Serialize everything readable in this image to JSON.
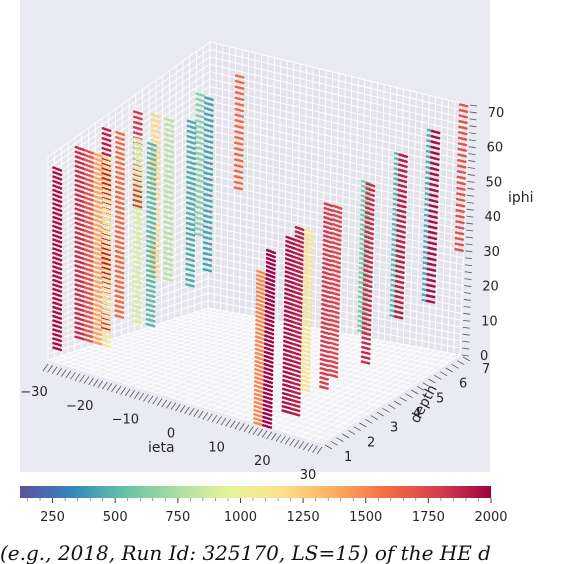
{
  "chart_data": {
    "type": "scatter",
    "subtype": "3d-scatter",
    "xlabel": "ieta",
    "ylabel": "depth",
    "zlabel": "iphi",
    "xticks": [
      "−30",
      "−20",
      "−10",
      "0",
      "10",
      "20",
      "30"
    ],
    "yticks": [
      "1",
      "2",
      "3",
      "4",
      "5",
      "6",
      "7"
    ],
    "zticks": [
      "0",
      "10",
      "20",
      "30",
      "40",
      "50",
      "60",
      "70"
    ],
    "xlim": [
      -30,
      30
    ],
    "ylim": [
      1,
      7
    ],
    "zlim": [
      0,
      72
    ],
    "grid": true,
    "colorbar": {
      "ticks": [
        "250",
        "500",
        "750",
        "1000",
        "1250",
        "1500",
        "1750",
        "2000"
      ],
      "range": [
        120,
        2000
      ],
      "colormap": "Spectral_r",
      "colors": [
        "#5e4fa2",
        "#3288bd",
        "#66c2a5",
        "#abdda4",
        "#e6f598",
        "#fee08b",
        "#fdae61",
        "#f46d43",
        "#d53e4f",
        "#9e0142"
      ]
    },
    "series": [
      {
        "ieta": -29,
        "depth": 2,
        "iphi": [
          5,
          70
        ],
        "value": 1850
      },
      {
        "ieta": -29,
        "depth": 3,
        "iphi": [
          5,
          70
        ],
        "value": 1900
      },
      {
        "ieta": -28,
        "depth": 1,
        "iphi": [
          5,
          70
        ],
        "value": 1950
      },
      {
        "ieta": -28,
        "depth": 4,
        "iphi": [
          40,
          70
        ],
        "value": 1800
      },
      {
        "ieta": -27,
        "depth": 2,
        "iphi": [
          5,
          70
        ],
        "value": 1700
      },
      {
        "ieta": -26,
        "depth": 3,
        "iphi": [
          10,
          70
        ],
        "value": 1600
      },
      {
        "ieta": -25,
        "depth": 2,
        "iphi": [
          5,
          70
        ],
        "value": 1400
      },
      {
        "ieta": -24,
        "depth": 4,
        "iphi": [
          20,
          70
        ],
        "value": 1200
      },
      {
        "ieta": -23,
        "depth": 2,
        "iphi": [
          5,
          70
        ],
        "value": 1100
      },
      {
        "ieta": -22,
        "depth": 3,
        "iphi": [
          10,
          70
        ],
        "value": 900
      },
      {
        "ieta": -21,
        "depth": 4,
        "iphi": [
          20,
          70
        ],
        "value": 800
      },
      {
        "ieta": -20,
        "depth": 5,
        "iphi": [
          30,
          72
        ],
        "value": 650
      },
      {
        "ieta": -19,
        "depth": 3,
        "iphi": [
          10,
          70
        ],
        "value": 500
      },
      {
        "ieta": -18,
        "depth": 5,
        "iphi": [
          20,
          72
        ],
        "value": 420
      },
      {
        "ieta": -17,
        "depth": 6,
        "iphi": [
          40,
          72
        ],
        "value": 1600
      },
      {
        "ieta": -16,
        "depth": 4,
        "iphi": [
          20,
          72
        ],
        "value": 450
      },
      {
        "ieta": 16,
        "depth": 1,
        "iphi": [
          0,
          60
        ],
        "value": 1500
      },
      {
        "ieta": 17,
        "depth": 2,
        "iphi": [
          0,
          65
        ],
        "value": 1950
      },
      {
        "ieta": 18,
        "depth": 1,
        "iphi": [
          0,
          70
        ],
        "value": 2000
      },
      {
        "ieta": 19,
        "depth": 2,
        "iphi": [
          0,
          70
        ],
        "value": 1900
      },
      {
        "ieta": 20,
        "depth": 3,
        "iphi": [
          5,
          70
        ],
        "value": 1800
      },
      {
        "ieta": 21,
        "depth": 2,
        "iphi": [
          10,
          70
        ],
        "value": 1100
      },
      {
        "ieta": 22,
        "depth": 3,
        "iphi": [
          10,
          70
        ],
        "value": 1750
      },
      {
        "ieta": 23,
        "depth": 4,
        "iphi": [
          20,
          70
        ],
        "value": 600
      },
      {
        "ieta": 24,
        "depth": 4,
        "iphi": [
          10,
          70
        ],
        "value": 1850
      },
      {
        "ieta": 25,
        "depth": 5,
        "iphi": [
          20,
          72
        ],
        "value": 500
      },
      {
        "ieta": 26,
        "depth": 5,
        "iphi": [
          20,
          72
        ],
        "value": 1900
      },
      {
        "ieta": 27,
        "depth": 6,
        "iphi": [
          20,
          72
        ],
        "value": 450
      },
      {
        "ieta": 28,
        "depth": 6,
        "iphi": [
          20,
          72
        ],
        "value": 1950
      },
      {
        "ieta": 29,
        "depth": 7,
        "iphi": [
          30,
          72
        ],
        "value": 1700
      }
    ]
  },
  "caption_text": "(e.g., 2018, Run Id: 325170, LS=15) of the HE d"
}
